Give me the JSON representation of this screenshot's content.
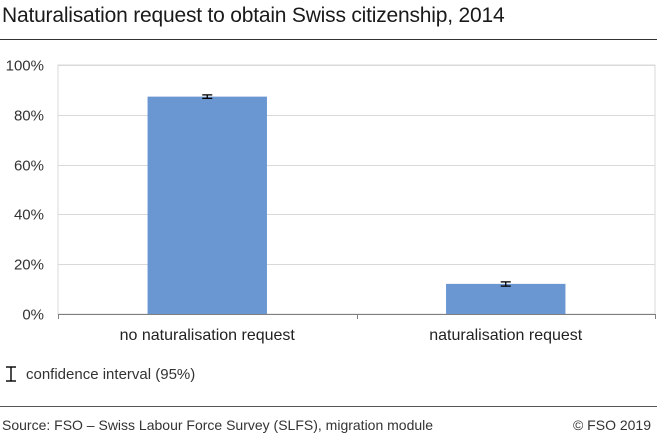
{
  "title": "Naturalisation request to obtain Swiss citizenship, 2014",
  "legend": {
    "label": "confidence interval (95%)"
  },
  "footer": {
    "source": "Source: FSO – Swiss Labour Force Survey (SLFS), migration module",
    "copyright": "© FSO 2019"
  },
  "colors": {
    "bar": "#6a96d2",
    "grid": "#d9d9d9",
    "axis": "#7f7f7f",
    "errorbar": "#000000"
  },
  "chart_data": {
    "type": "bar",
    "title": "Naturalisation request to obtain Swiss citizenship, 2014",
    "categories": [
      "no naturalisation request",
      "naturalisation request"
    ],
    "values": [
      87.3,
      12.1
    ],
    "ci": [
      [
        86.6,
        88.0
      ],
      [
        11.2,
        12.9
      ]
    ],
    "ylim": [
      0,
      100
    ],
    "yticks": [
      0,
      20,
      40,
      60,
      80,
      100
    ],
    "ytick_labels": [
      "0%",
      "20%",
      "40%",
      "60%",
      "80%",
      "100%"
    ],
    "grid": true,
    "legend_placement": "bottom-left"
  }
}
